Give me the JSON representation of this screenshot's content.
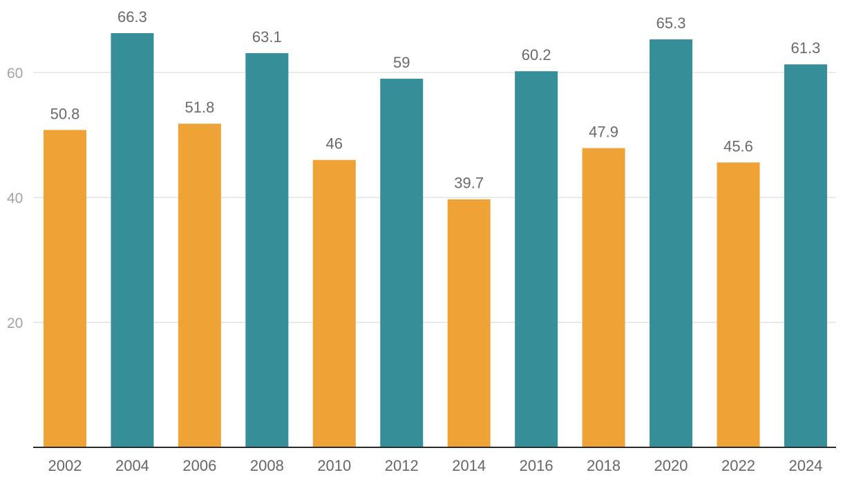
{
  "chart_data": {
    "type": "bar",
    "title": "",
    "xlabel": "",
    "ylabel": "",
    "categories": [
      "2002",
      "2004",
      "2006",
      "2008",
      "2010",
      "2012",
      "2014",
      "2016",
      "2018",
      "2020",
      "2022",
      "2024"
    ],
    "values": [
      50.8,
      66.3,
      51.8,
      63.1,
      46,
      59,
      39.7,
      60.2,
      47.9,
      65.3,
      45.6,
      61.3
    ],
    "value_labels": [
      "50.8",
      "66.3",
      "51.8",
      "63.1",
      "46",
      "59",
      "39.7",
      "60.2",
      "47.9",
      "65.3",
      "45.6",
      "61.3"
    ],
    "ylim": [
      0,
      66.3
    ],
    "y_ticks": [
      20,
      40,
      60
    ],
    "y_tick_labels": [
      "20",
      "40",
      "60"
    ],
    "grid": true,
    "colors": {
      "midterm": "#efa236",
      "presidential": "#368e98"
    },
    "bar_color_pattern": [
      "midterm",
      "presidential"
    ]
  }
}
